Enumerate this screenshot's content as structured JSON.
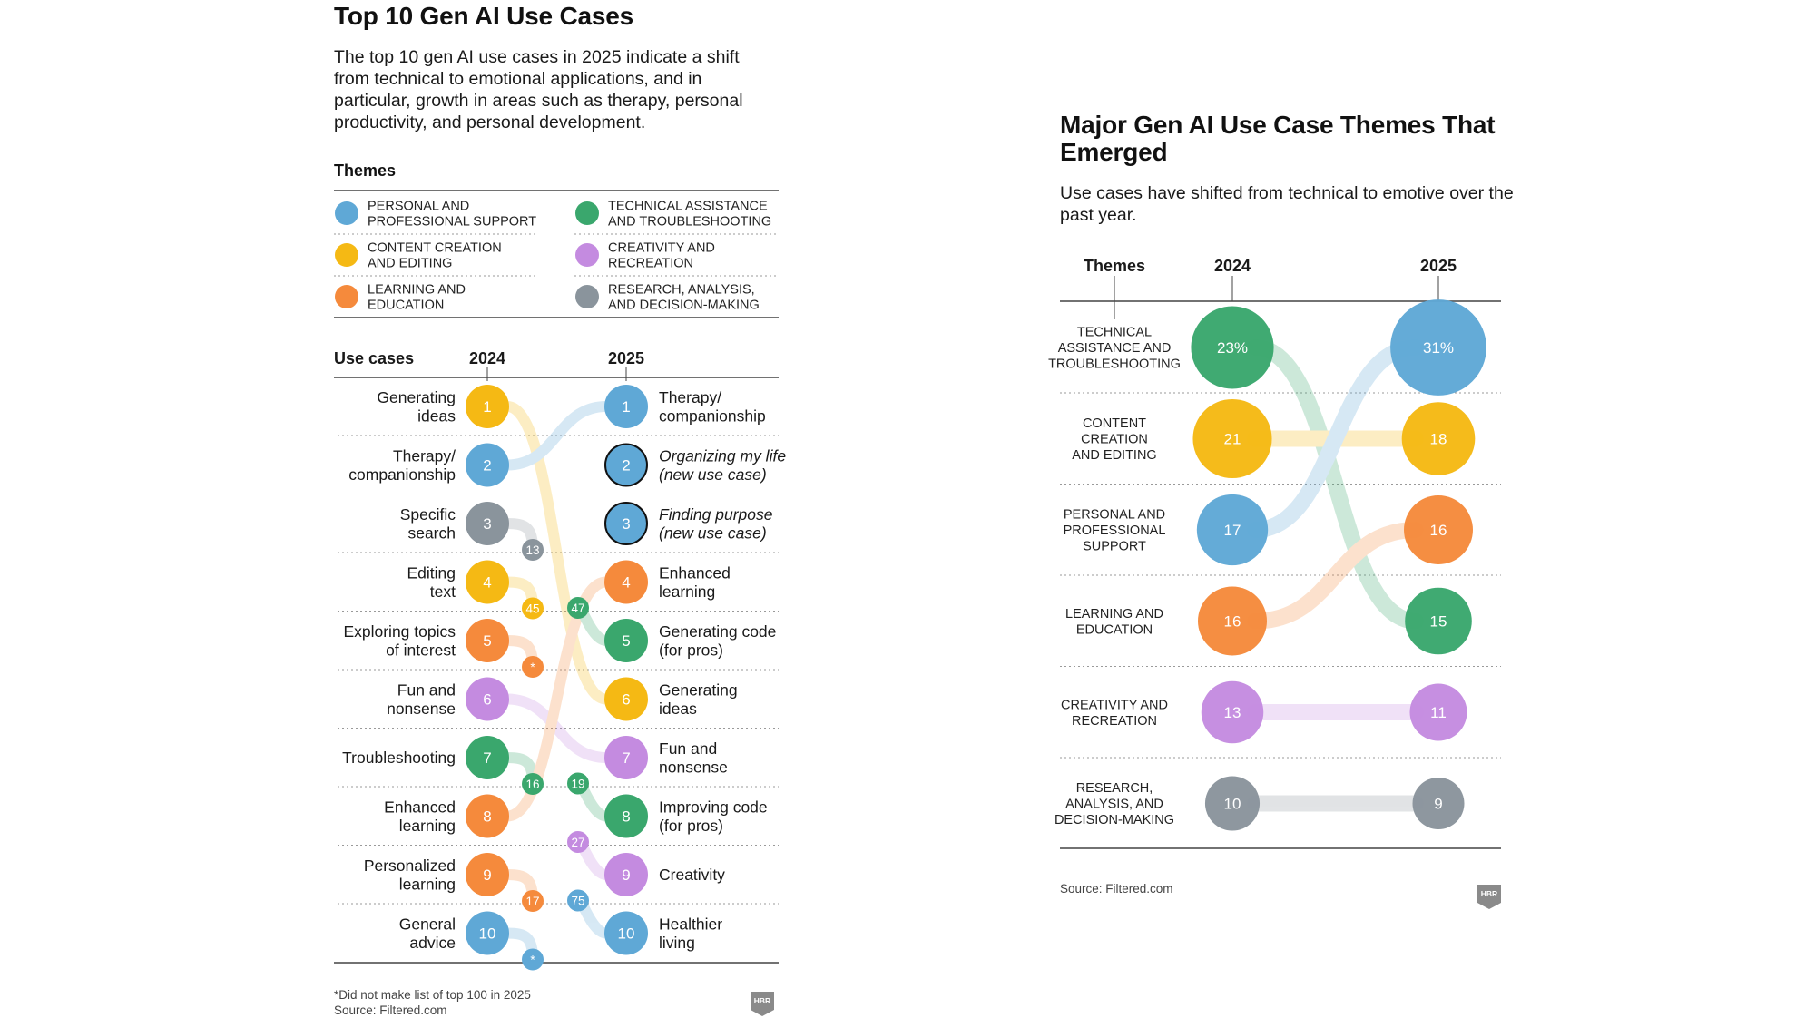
{
  "left": {
    "title": "Top 10 Gen AI Use Cases",
    "intro": "The top 10 gen AI use cases in 2025 indicate a shift from technical to emotional applications, and in particular, growth in areas such as therapy, personal productivity, and personal development.",
    "themes_heading": "Themes",
    "legend": [
      {
        "key": "personal",
        "label_lines": [
          "PERSONAL AND",
          "PROFESSIONAL SUPPORT"
        ]
      },
      {
        "key": "technical",
        "label_lines": [
          "TECHNICAL ASSISTANCE",
          "AND TROUBLESHOOTING"
        ]
      },
      {
        "key": "content",
        "label_lines": [
          "CONTENT CREATION",
          "AND EDITING"
        ]
      },
      {
        "key": "creativity",
        "label_lines": [
          "CREATIVITY AND",
          "RECREATION"
        ]
      },
      {
        "key": "learning",
        "label_lines": [
          "LEARNING AND",
          "EDUCATION"
        ]
      },
      {
        "key": "research",
        "label_lines": [
          "RESEARCH, ANALYSIS,",
          "AND DECISION-MAKING"
        ]
      }
    ],
    "use_cases_heading": "Use cases",
    "year_a": "2024",
    "year_b": "2025",
    "footnote": "*Did not make list of top 100 in 2025",
    "source": "Source: Filtered.com",
    "logo": "HBR"
  },
  "chart_data": [
    {
      "type": "slope",
      "title": "Top 10 Gen AI Use Cases",
      "years": [
        "2024",
        "2025"
      ],
      "ranks_2024": [
        {
          "rank": "1",
          "label_lines": [
            "Generating",
            "ideas"
          ],
          "theme": "content",
          "rank_2025": "6"
        },
        {
          "rank": "2",
          "label_lines": [
            "Therapy/",
            "companionship"
          ],
          "theme": "personal",
          "rank_2025": "1"
        },
        {
          "rank": "3",
          "label_lines": [
            "Specific",
            "search"
          ],
          "theme": "research",
          "rank_2025": "13"
        },
        {
          "rank": "4",
          "label_lines": [
            "Editing",
            "text"
          ],
          "theme": "content",
          "rank_2025": "45"
        },
        {
          "rank": "5",
          "label_lines": [
            "Exploring topics",
            "of interest"
          ],
          "theme": "learning",
          "rank_2025": "*"
        },
        {
          "rank": "6",
          "label_lines": [
            "Fun and",
            "nonsense"
          ],
          "theme": "creativity",
          "rank_2025": "7"
        },
        {
          "rank": "7",
          "label_lines": [
            "Troubleshooting"
          ],
          "theme": "technical",
          "rank_2025": "16"
        },
        {
          "rank": "8",
          "label_lines": [
            "Enhanced",
            "learning"
          ],
          "theme": "learning",
          "rank_2025": "4"
        },
        {
          "rank": "9",
          "label_lines": [
            "Personalized",
            "learning"
          ],
          "theme": "learning",
          "rank_2025": "17"
        },
        {
          "rank": "10",
          "label_lines": [
            "General",
            "advice"
          ],
          "theme": "personal",
          "rank_2025": "*"
        }
      ],
      "ranks_2025": [
        {
          "rank": "1",
          "label_lines": [
            "Therapy/",
            "companionship"
          ],
          "theme": "personal",
          "rank_2024": "2"
        },
        {
          "rank": "2",
          "label_lines": [
            "Organizing my life",
            "(new use case)"
          ],
          "theme": "new",
          "rank_2024": ""
        },
        {
          "rank": "3",
          "label_lines": [
            "Finding purpose",
            "(new use case)"
          ],
          "theme": "new",
          "rank_2024": ""
        },
        {
          "rank": "4",
          "label_lines": [
            "Enhanced",
            "learning"
          ],
          "theme": "learning",
          "rank_2024": "8"
        },
        {
          "rank": "5",
          "label_lines": [
            "Generating code",
            "(for pros)"
          ],
          "theme": "technical",
          "rank_2024": "47"
        },
        {
          "rank": "6",
          "label_lines": [
            "Generating",
            "ideas"
          ],
          "theme": "content",
          "rank_2024": "1"
        },
        {
          "rank": "7",
          "label_lines": [
            "Fun and",
            "nonsense"
          ],
          "theme": "creativity",
          "rank_2024": "6"
        },
        {
          "rank": "8",
          "label_lines": [
            "Improving code",
            "(for pros)"
          ],
          "theme": "technical",
          "rank_2024": "19"
        },
        {
          "rank": "9",
          "label_lines": [
            "Creativity"
          ],
          "theme": "creativity",
          "rank_2024": "27"
        },
        {
          "rank": "10",
          "label_lines": [
            "Healthier",
            "living"
          ],
          "theme": "personal",
          "rank_2024": "75"
        }
      ]
    },
    {
      "type": "bubble-slope",
      "title": "Major Gen AI Use Case Themes That Emerged",
      "subtitle": "Use cases have shifted from technical to emotive over the past year.",
      "header_label": "Themes",
      "years": [
        "2024",
        "2025"
      ],
      "unit": "%",
      "rows": [
        {
          "label_lines": [
            "TECHNICAL",
            "ASSISTANCE AND",
            "TROUBLESHOOTING"
          ],
          "theme": "technical",
          "value_2024": 23,
          "value_2024_label": "23%"
        },
        {
          "label_lines": [
            "CONTENT",
            "CREATION",
            "AND EDITING"
          ],
          "theme": "content",
          "value_2024": 21,
          "value_2024_label": "21"
        },
        {
          "label_lines": [
            "PERSONAL AND",
            "PROFESSIONAL",
            "SUPPORT"
          ],
          "theme": "personal",
          "value_2024": 17,
          "value_2024_label": "17"
        },
        {
          "label_lines": [
            "LEARNING AND",
            "EDUCATION"
          ],
          "theme": "learning",
          "value_2024": 16,
          "value_2024_label": "16"
        },
        {
          "label_lines": [
            "CREATIVITY AND",
            "RECREATION"
          ],
          "theme": "creativity",
          "value_2024": 13,
          "value_2024_label": "13"
        },
        {
          "label_lines": [
            "RESEARCH,",
            "ANALYSIS, AND",
            "DECISION-MAKING"
          ],
          "theme": "research",
          "value_2024": 10,
          "value_2024_label": "10"
        }
      ],
      "ranks_2025": [
        {
          "theme": "personal",
          "value": 31,
          "label": "31%"
        },
        {
          "theme": "content",
          "value": 18,
          "label": "18"
        },
        {
          "theme": "learning",
          "value": 16,
          "label": "16"
        },
        {
          "theme": "technical",
          "value": 15,
          "label": "15"
        },
        {
          "theme": "creativity",
          "value": 11,
          "label": "11"
        },
        {
          "theme": "research",
          "value": 9,
          "label": "9"
        }
      ],
      "source": "Source: Filtered.com",
      "logo": "HBR"
    }
  ],
  "colors": {
    "personal": "#5fa8d6",
    "technical": "#3aa76d",
    "content": "#f5b914",
    "creativity": "#c48be0",
    "learning": "#f58a3c",
    "research": "#8a949c",
    "new": "#5fa8d6",
    "rule": "#444444",
    "dotted": "#9a9a9a"
  }
}
